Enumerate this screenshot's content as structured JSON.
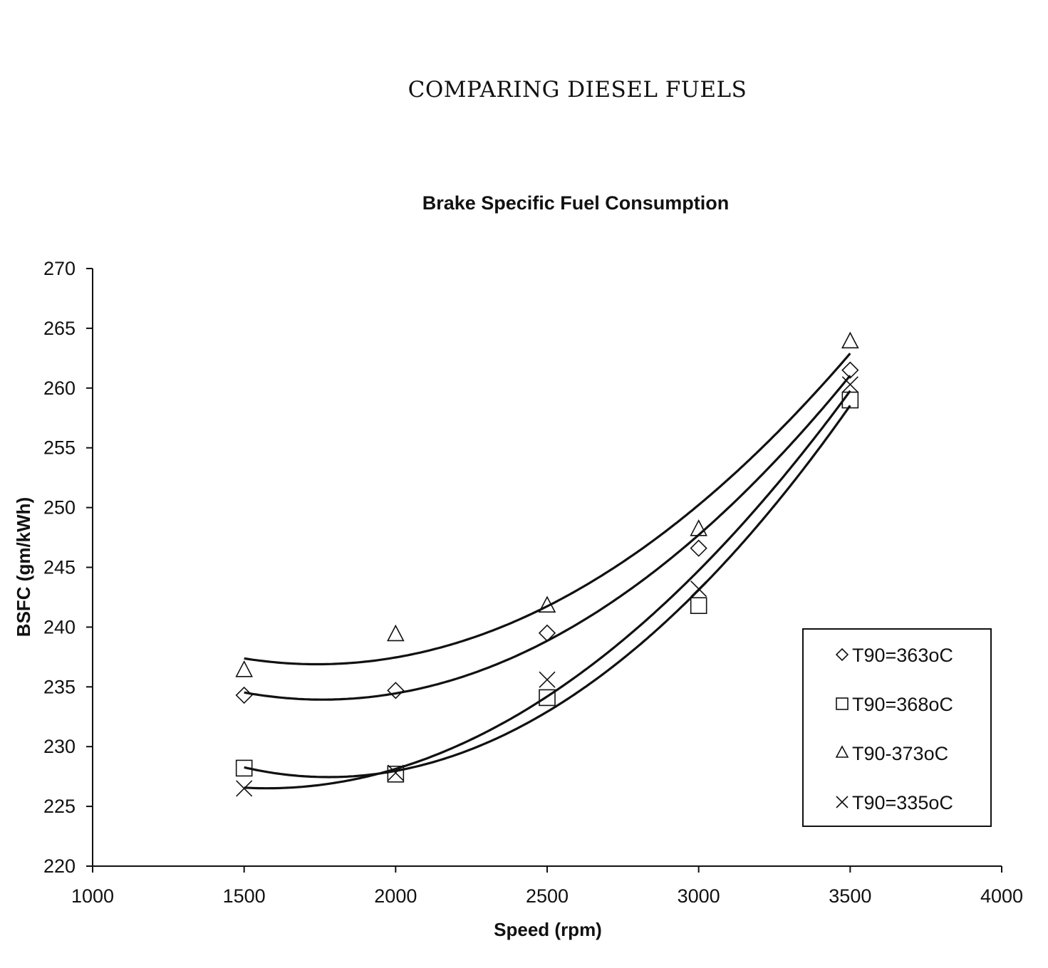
{
  "page": {
    "header": "COMPARING DIESEL FUELS"
  },
  "chart_data": {
    "type": "scatter",
    "title": "Brake Specific Fuel Consumption",
    "xlabel": "Speed (rpm)",
    "ylabel": "BSFC (gm/kWh)",
    "xlim": [
      1000,
      4000
    ],
    "ylim": [
      220,
      270
    ],
    "xticks": [
      1000,
      1500,
      2000,
      2500,
      3000,
      3500,
      4000
    ],
    "yticks": [
      220,
      225,
      230,
      235,
      240,
      245,
      250,
      255,
      260,
      265,
      270
    ],
    "grid": false,
    "legend_position": "lower right (inside)",
    "trendline": "polynomial order 2 per series",
    "x": [
      1500,
      2000,
      2500,
      3000,
      3500
    ],
    "series": [
      {
        "name": "T90=363oC",
        "marker": "diamond",
        "values": [
          234.3,
          234.7,
          239.5,
          246.6,
          261.5
        ]
      },
      {
        "name": "T90=368oC",
        "marker": "square",
        "values": [
          228.2,
          227.7,
          234.1,
          241.8,
          259.0
        ]
      },
      {
        "name": "T90-373oC",
        "marker": "triangle",
        "values": [
          236.4,
          239.4,
          241.8,
          248.2,
          263.9
        ]
      },
      {
        "name": "T90=335oC",
        "marker": "x",
        "values": [
          226.5,
          227.8,
          235.6,
          243.2,
          260.3
        ]
      }
    ]
  }
}
